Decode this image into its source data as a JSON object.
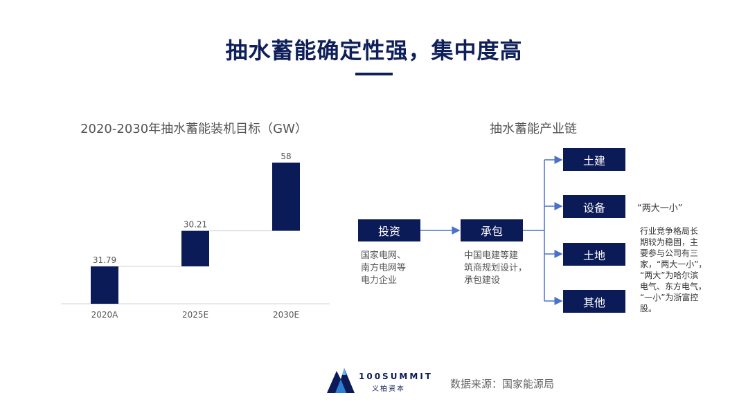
{
  "title": "抽水蓄能确定性强，集中度高",
  "chart_data": {
    "type": "bar",
    "title": "2020-2030年抽水蓄能装机目标（GW）",
    "categories": [
      "2020A",
      "2025E",
      "2030E"
    ],
    "labels": [
      "31.79",
      "30.21",
      "58"
    ],
    "bar_ranges": [
      [
        0,
        31.79
      ],
      [
        31.79,
        62
      ],
      [
        62,
        120
      ]
    ],
    "ylim": [
      0,
      120
    ],
    "series_color": "#0b1b57"
  },
  "chain": {
    "title": "抽水蓄能产业链",
    "invest": {
      "label": "投资",
      "desc": "国家电网、\n南方电网等\n电力企业"
    },
    "contract": {
      "label": "承包",
      "desc": "中国电建等建\n筑商规划设计，\n承包建设"
    },
    "outputs": [
      {
        "label": "土建"
      },
      {
        "label": "设备"
      },
      {
        "label": "土地"
      },
      {
        "label": "其他"
      }
    ],
    "equipment_quote": "“两大一小”",
    "equipment_note": "行业竞争格局长\n期较为稳固，主\n要参与公司有三\n家，“两大一小”，\n“两大”为哈尔滨\n电气、东方电气，\n“一小”为浙富控\n股。"
  },
  "logo": {
    "line1": "100SUMMIT",
    "line2": "义柏资本"
  },
  "source": "数据来源：国家能源局",
  "colors": {
    "navy": "#0b1b57",
    "arrow": "#4a72c9"
  }
}
